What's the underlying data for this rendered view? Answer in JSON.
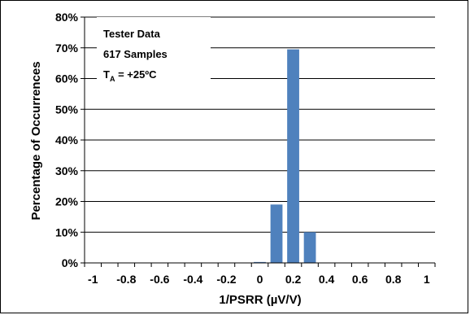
{
  "chart_data": {
    "type": "bar",
    "title": "",
    "xlabel": "1/PSRR (µV/V)",
    "ylabel": "Percentage of Occurrences",
    "xlim": [
      -1.05,
      1.05
    ],
    "ylim": [
      0,
      80
    ],
    "x_ticks": [
      -1,
      -0.8,
      -0.6,
      -0.4,
      -0.2,
      0,
      0.2,
      0.4,
      0.6,
      0.8,
      1
    ],
    "x_tick_labels": [
      "-1",
      "-0.8",
      "-0.6",
      "-0.4",
      "-0.2",
      "0",
      "0.2",
      "0.4",
      "0.6",
      "0.8",
      "1"
    ],
    "y_ticks": [
      0,
      10,
      20,
      30,
      40,
      50,
      60,
      70,
      80
    ],
    "y_tick_labels": [
      "0%",
      "10%",
      "20%",
      "30%",
      "40%",
      "50%",
      "60%",
      "70%",
      "80%"
    ],
    "grid": "horizontal",
    "bar_color": "#4f81bd",
    "x": [
      0.0,
      0.1,
      0.2,
      0.3
    ],
    "values": [
      0.3,
      19.0,
      69.5,
      10.0
    ],
    "annotation": {
      "line1": "Tester Data",
      "line2": "617 Samples",
      "line3_prefix": "T",
      "line3_sub": "A",
      "line3_suffix": " = +25ºC"
    }
  }
}
